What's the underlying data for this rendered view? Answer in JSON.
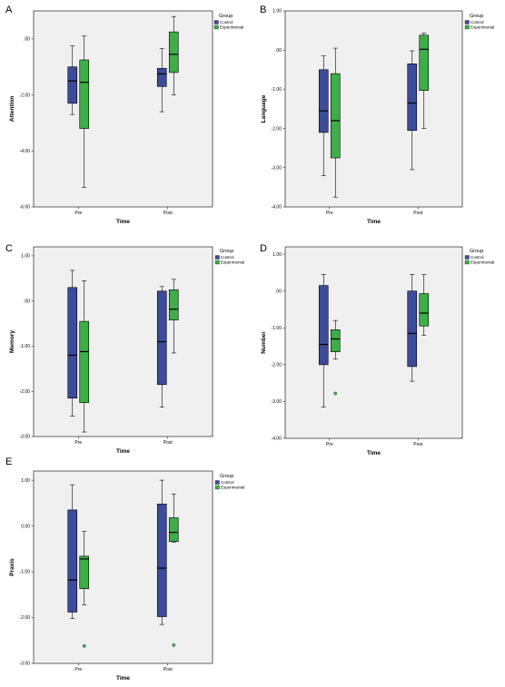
{
  "chart_data": [
    {
      "type": "boxplot",
      "panel_label": "A",
      "xlabel": "Time",
      "ylabel": "Attention",
      "categories": [
        "Pre",
        "Post"
      ],
      "ylim": [
        -6,
        1
      ],
      "yticks": [
        -6,
        -4,
        -2,
        0
      ],
      "ytick_labels": [
        "-6.00",
        "-4.00",
        "-2.00",
        ".00"
      ],
      "legend_title": "Group",
      "legend_position": "right",
      "series": [
        {
          "name": "Control",
          "color": "#3d4c9a",
          "boxes": [
            {
              "category": "Pre",
              "whisker_low": -2.7,
              "q1": -2.3,
              "median": -1.5,
              "q3": -1.0,
              "whisker_high": -0.25
            },
            {
              "category": "Post",
              "whisker_low": -2.6,
              "q1": -1.7,
              "median": -1.25,
              "q3": -1.05,
              "whisker_high": -0.35
            }
          ],
          "outliers": []
        },
        {
          "name": "Experimental",
          "color": "#3dae48",
          "boxes": [
            {
              "category": "Pre",
              "whisker_low": -5.3,
              "q1": -3.2,
              "median": -1.55,
              "q3": -0.75,
              "whisker_high": 0.1
            },
            {
              "category": "Post",
              "whisker_low": -2.0,
              "q1": -1.2,
              "median": -0.55,
              "q3": 0.25,
              "whisker_high": 0.8
            }
          ],
          "outliers": []
        }
      ]
    },
    {
      "type": "boxplot",
      "panel_label": "B",
      "xlabel": "Time",
      "ylabel": "Language",
      "categories": [
        "Pre",
        "Post"
      ],
      "ylim": [
        -4,
        1
      ],
      "yticks": [
        -4,
        -3,
        -2,
        -1,
        0,
        1
      ],
      "ytick_labels": [
        "-4.00",
        "-3.00",
        "-2.00",
        "-1.00",
        ".00",
        "1.00"
      ],
      "legend_title": "Group",
      "legend_position": "right",
      "series": [
        {
          "name": "Control",
          "color": "#3d4c9a",
          "boxes": [
            {
              "category": "Pre",
              "whisker_low": -3.2,
              "q1": -2.1,
              "median": -1.55,
              "q3": -0.5,
              "whisker_high": -0.15
            },
            {
              "category": "Post",
              "whisker_low": -3.05,
              "q1": -2.05,
              "median": -1.35,
              "q3": -0.35,
              "whisker_high": -0.02
            }
          ],
          "outliers": []
        },
        {
          "name": "Experimental",
          "color": "#3dae48",
          "boxes": [
            {
              "category": "Pre",
              "whisker_low": -3.75,
              "q1": -2.75,
              "median": -1.8,
              "q3": -0.6,
              "whisker_high": 0.05
            },
            {
              "category": "Post",
              "whisker_low": -2.0,
              "q1": -1.03,
              "median": 0.02,
              "q3": 0.38,
              "whisker_high": 0.43
            }
          ],
          "outliers": []
        }
      ]
    },
    {
      "type": "boxplot",
      "panel_label": "C",
      "xlabel": "Time",
      "ylabel": "Memory",
      "categories": [
        "Pre",
        "Post"
      ],
      "ylim": [
        -3,
        1.2
      ],
      "yticks": [
        -3,
        -2,
        -1,
        0,
        1
      ],
      "ytick_labels": [
        "-3.00",
        "-2.00",
        "-1.00",
        ".00",
        "1.00"
      ],
      "legend_title": "Group",
      "legend_position": "right",
      "series": [
        {
          "name": "Control",
          "color": "#3d4c9a",
          "boxes": [
            {
              "category": "Pre",
              "whisker_low": -2.55,
              "q1": -2.15,
              "median": -1.2,
              "q3": 0.3,
              "whisker_high": 0.68
            },
            {
              "category": "Post",
              "whisker_low": -2.35,
              "q1": -1.85,
              "median": -0.9,
              "q3": 0.22,
              "whisker_high": 0.32
            }
          ],
          "outliers": []
        },
        {
          "name": "Experimental",
          "color": "#3dae48",
          "boxes": [
            {
              "category": "Pre",
              "whisker_low": -2.9,
              "q1": -2.25,
              "median": -1.12,
              "q3": -0.45,
              "whisker_high": 0.45
            },
            {
              "category": "Post",
              "whisker_low": -1.15,
              "q1": -0.42,
              "median": -0.18,
              "q3": 0.25,
              "whisker_high": 0.48
            }
          ],
          "outliers": []
        }
      ]
    },
    {
      "type": "boxplot",
      "panel_label": "D",
      "xlabel": "Time",
      "ylabel": "Number",
      "categories": [
        "Pre",
        "Post"
      ],
      "ylim": [
        -4,
        1.2
      ],
      "yticks": [
        -4,
        -3,
        -2,
        -1,
        0,
        1
      ],
      "ytick_labels": [
        "-4.00",
        "-3.00",
        "-2.00",
        "-1.00",
        ".00",
        "1.00"
      ],
      "legend_title": "Group",
      "legend_position": "right",
      "series": [
        {
          "name": "Control",
          "color": "#3d4c9a",
          "boxes": [
            {
              "category": "Pre",
              "whisker_low": -3.15,
              "q1": -2.0,
              "median": -1.45,
              "q3": 0.15,
              "whisker_high": 0.45
            },
            {
              "category": "Post",
              "whisker_low": -2.45,
              "q1": -2.05,
              "median": -1.15,
              "q3": 0.0,
              "whisker_high": 0.45
            }
          ],
          "outliers": []
        },
        {
          "name": "Experimental",
          "color": "#3dae48",
          "boxes": [
            {
              "category": "Pre",
              "whisker_low": -1.85,
              "q1": -1.65,
              "median": -1.3,
              "q3": -1.05,
              "whisker_high": -0.8
            },
            {
              "category": "Post",
              "whisker_low": -1.2,
              "q1": -0.95,
              "median": -0.6,
              "q3": -0.07,
              "whisker_high": 0.45
            }
          ],
          "outliers": [
            {
              "category": "Pre",
              "value": -2.78
            }
          ]
        }
      ]
    },
    {
      "type": "boxplot",
      "panel_label": "E",
      "xlabel": "Time",
      "ylabel": "Praxis",
      "categories": [
        "Pre",
        "Post"
      ],
      "ylim": [
        -3,
        1.2
      ],
      "yticks": [
        -3,
        -2,
        -1,
        0,
        1
      ],
      "ytick_labels": [
        "-3.00",
        "-2.00",
        "-1.00",
        "0.00",
        "1.00"
      ],
      "legend_title": "Group",
      "legend_position": "right",
      "series": [
        {
          "name": "Control",
          "color": "#3d4c9a",
          "boxes": [
            {
              "category": "Pre",
              "whisker_low": -2.02,
              "q1": -1.88,
              "median": -1.18,
              "q3": 0.35,
              "whisker_high": 0.9
            },
            {
              "category": "Post",
              "whisker_low": -2.15,
              "q1": -1.98,
              "median": -0.92,
              "q3": 0.48,
              "whisker_high": 1.0
            }
          ],
          "outliers": []
        },
        {
          "name": "Experimental",
          "color": "#3dae48",
          "boxes": [
            {
              "category": "Pre",
              "whisker_low": -1.72,
              "q1": -1.37,
              "median": -0.72,
              "q3": -0.66,
              "whisker_high": -0.12
            },
            {
              "category": "Post",
              "whisker_low": -0.35,
              "q1": -0.34,
              "median": -0.14,
              "q3": 0.18,
              "whisker_high": 0.7
            }
          ],
          "outliers": [
            {
              "category": "Pre",
              "value": -2.62
            },
            {
              "category": "Post",
              "value": -2.6
            }
          ]
        }
      ]
    }
  ]
}
